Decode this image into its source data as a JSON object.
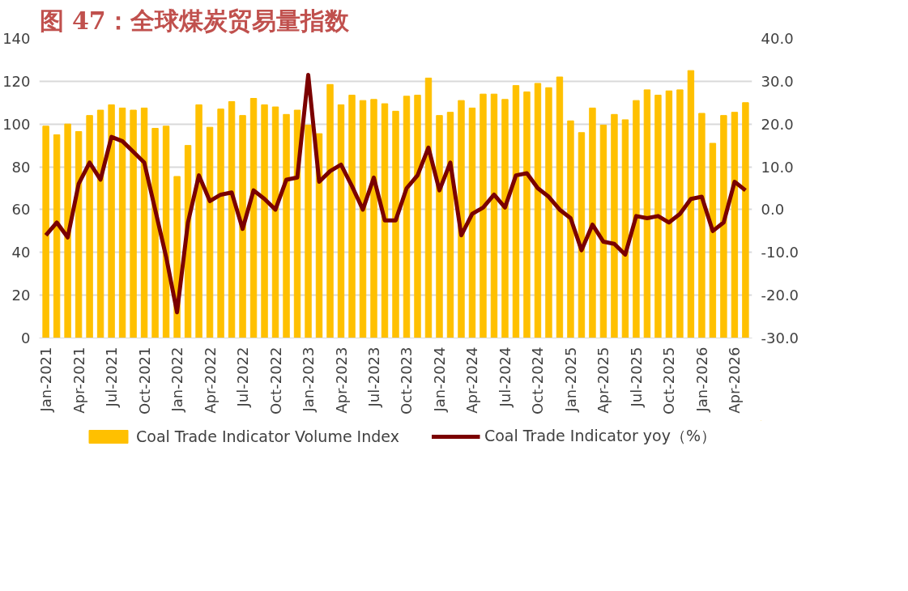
{
  "chart_data": {
    "type": "bar",
    "title": "图 47：全球煤炭贸易量指数",
    "categories": [
      "Jan-2021",
      null,
      null,
      "Apr-2021",
      null,
      null,
      "Jul-2021",
      null,
      null,
      "Oct-2021",
      null,
      null,
      "Jan-2022",
      null,
      null,
      "Apr-2022",
      null,
      null,
      "Jul-2022",
      null,
      null,
      "Oct-2022",
      null,
      null,
      "Jan-2023",
      null,
      null,
      "Apr-2023",
      null,
      null,
      "Jul-2023",
      null,
      null,
      "Oct-2023",
      null,
      null,
      "Jan-2024",
      null,
      null,
      "Apr-2024",
      null,
      null,
      "Jul-2024",
      null,
      null,
      "Oct-2024",
      null,
      null,
      "Jan-2025",
      null,
      null,
      "Apr-2025",
      null,
      null,
      "Jul-2025",
      null,
      null,
      "Oct-2025",
      null,
      null,
      "Jan-2026",
      null,
      null,
      "Apr-2026",
      null
    ],
    "series": [
      {
        "name": "Coal Trade Indicator Volume Index",
        "color": "#ffc000",
        "values": [
          99,
          95,
          100,
          96.5,
          104,
          106.5,
          109,
          107.5,
          106.5,
          107.5,
          98,
          99,
          75.5,
          90,
          109,
          98.5,
          107,
          110.5,
          104,
          112,
          109,
          108,
          104.5,
          106.5,
          99.5,
          95.5,
          118.5,
          109,
          113.5,
          111,
          111.5,
          109.5,
          106,
          113,
          113.5,
          121.5,
          104,
          105.5,
          111,
          107.5,
          114,
          114,
          111.5,
          118,
          115,
          119,
          117,
          122,
          101.5,
          96,
          107.5,
          99.5,
          104.5,
          102,
          111,
          116,
          113.5,
          115.5,
          116,
          125,
          105,
          91,
          104,
          105.5,
          110
        ]
      },
      {
        "name": "Coal Trade Indicator yoy（%）",
        "type": "line",
        "axis": "y2",
        "color": "#7b0000",
        "values": [
          -6,
          -3,
          -6.5,
          6,
          11,
          7,
          17,
          16,
          13.5,
          11,
          0,
          -11,
          -24,
          -3,
          8,
          2,
          3.5,
          4,
          -4.5,
          4.5,
          2.5,
          0,
          7,
          7.5,
          31.5,
          6.5,
          9,
          10.5,
          5.5,
          0,
          7.5,
          -2.5,
          -2.5,
          5,
          8,
          14.5,
          4.5,
          11,
          -6,
          -1,
          0.5,
          3.5,
          0.5,
          8,
          8.5,
          5,
          3,
          0,
          -2,
          -9.5,
          -3.5,
          -7.5,
          -8,
          -10.5,
          -1.5,
          -2,
          -1.5,
          -3,
          -1,
          2.5,
          3,
          -5,
          -3,
          6.5,
          4.5
        ]
      }
    ],
    "ylim": [
      0,
      140
    ],
    "yticks": [
      0,
      20,
      40,
      60,
      80,
      100,
      120,
      140
    ],
    "y2lim": [
      -30,
      40
    ],
    "y2ticks": [
      {
        "value": -30,
        "label": "-30.0"
      },
      {
        "value": -20,
        "label": "-20.0"
      },
      {
        "value": -10,
        "label": "-10.0"
      },
      {
        "value": 0,
        "label": "0.0"
      },
      {
        "value": 10,
        "label": "10.0"
      },
      {
        "value": 20,
        "label": "20.0"
      },
      {
        "value": 30,
        "label": "30.0"
      },
      {
        "value": 40,
        "label": "40.0"
      }
    ],
    "grid": "y",
    "legend": "bottom"
  }
}
